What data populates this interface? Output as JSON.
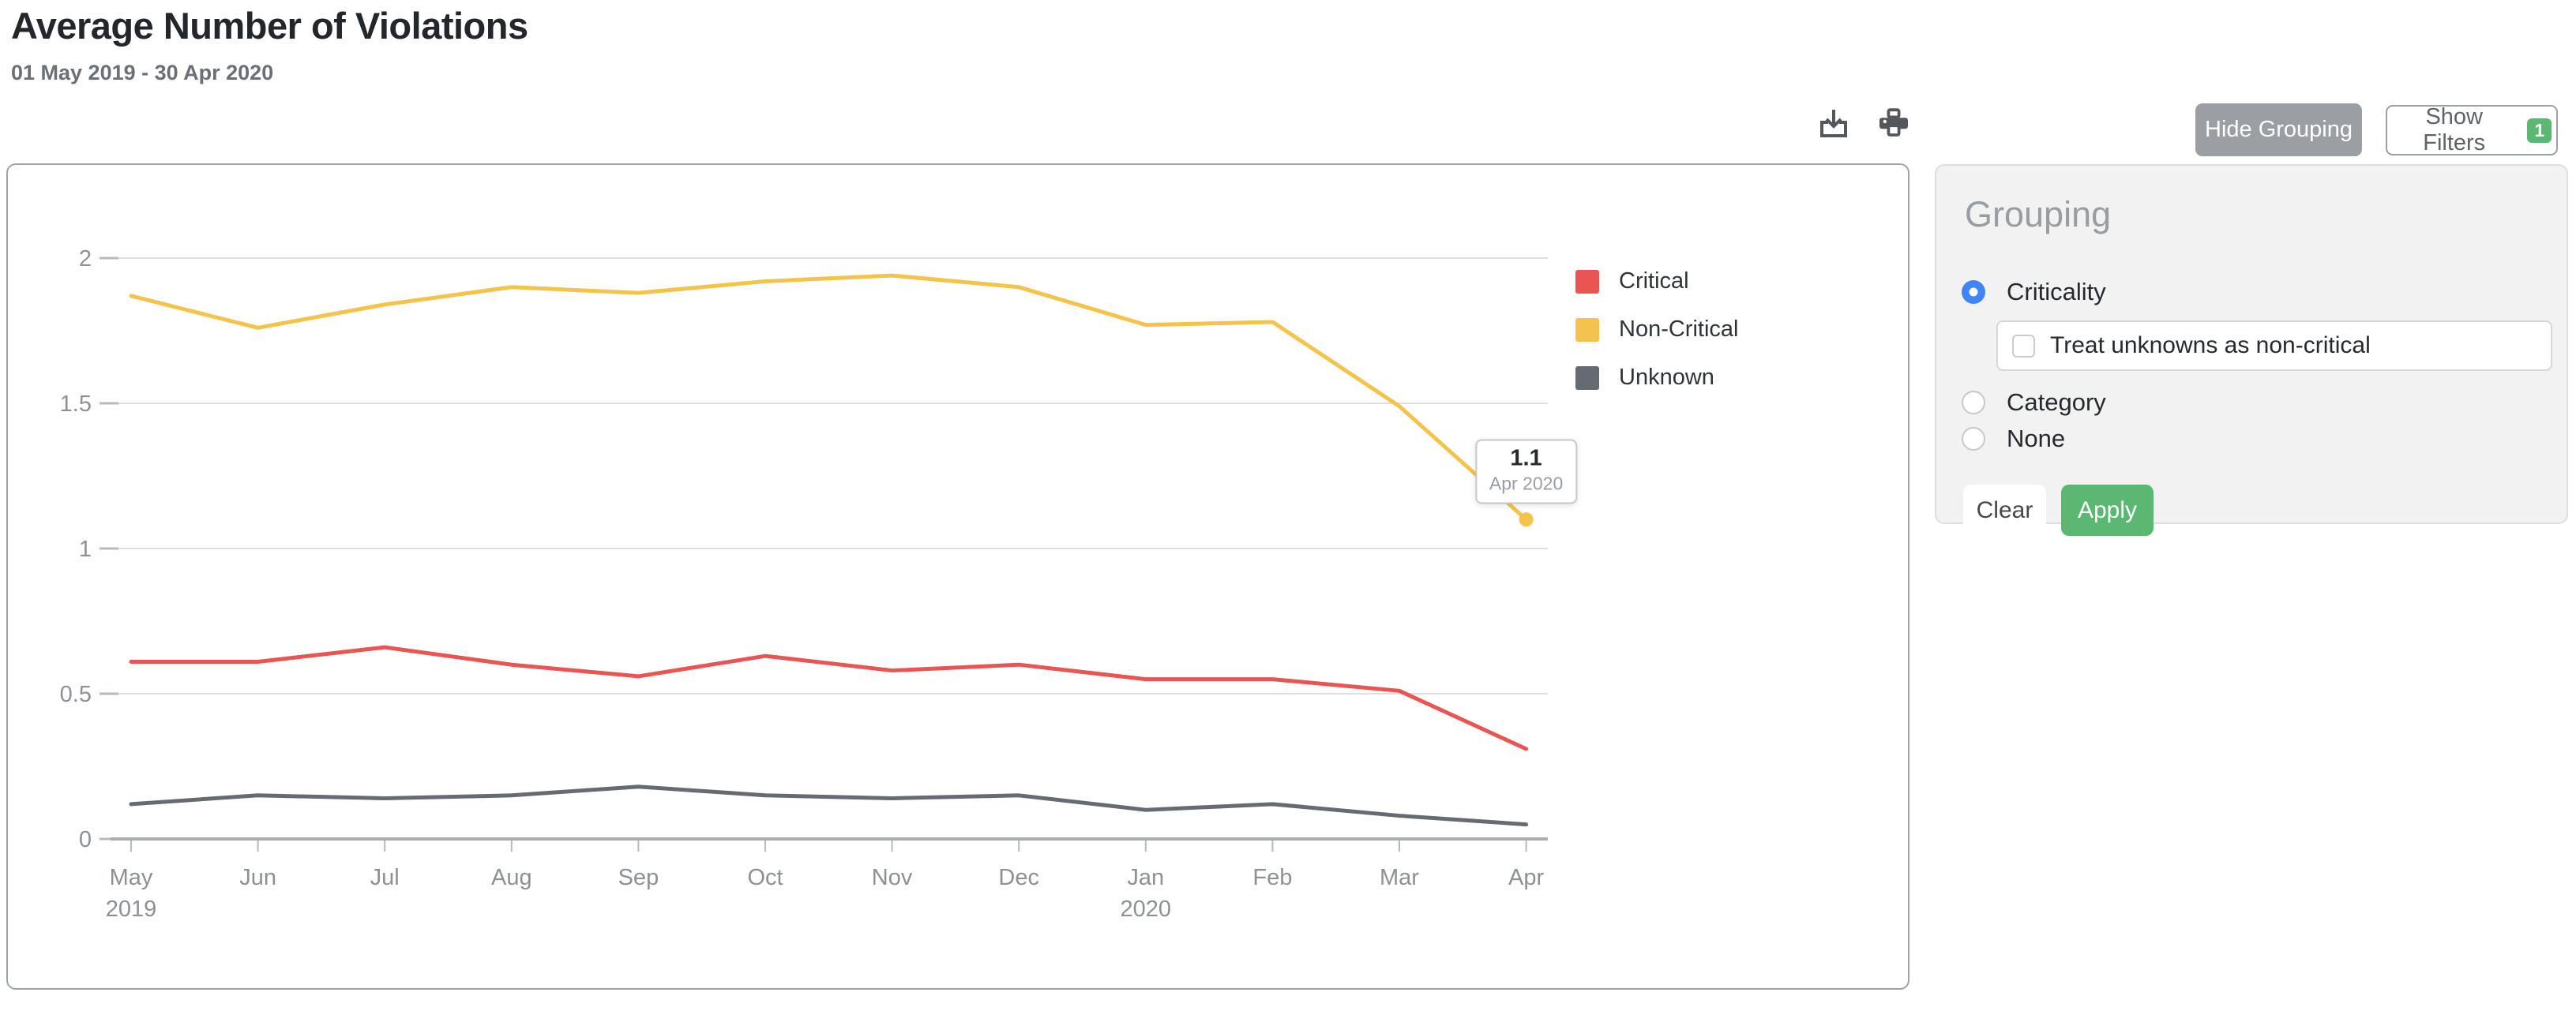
{
  "header": {
    "title": "Average Number of Violations",
    "date_range": "01 May 2019 - 30 Apr 2020"
  },
  "toolbar": {
    "download_icon": "download-icon",
    "print_icon": "print-icon",
    "hide_grouping_label": "Hide Grouping",
    "show_filters_label": "Show Filters",
    "filters_count": "1"
  },
  "grouping": {
    "title": "Grouping",
    "options": [
      {
        "label": "Criticality",
        "selected": true
      },
      {
        "label": "Category",
        "selected": false
      },
      {
        "label": "None",
        "selected": false
      }
    ],
    "treat_unknowns": {
      "label": "Treat unknowns as non-critical",
      "checked": false
    },
    "clear_label": "Clear",
    "apply_label": "Apply"
  },
  "chart_data": {
    "type": "line",
    "title": "Average Number of Violations",
    "subtitle": "01 May 2019 - 30 Apr 2020",
    "categories": [
      "May",
      "Jun",
      "Jul",
      "Aug",
      "Sep",
      "Oct",
      "Nov",
      "Dec",
      "Jan",
      "Feb",
      "Mar",
      "Apr"
    ],
    "year_labels": {
      "0": "2019",
      "8": "2020"
    },
    "yticks": [
      0,
      0.5,
      1,
      1.5,
      2
    ],
    "ylim": [
      0,
      2.15
    ],
    "grid": "horizontal",
    "legend_position": "right",
    "colors": {
      "accent_blue": "#4184f3",
      "accent_green": "#5bb873",
      "grid_line": "#dedfe0",
      "axis_line": "#a9adb1",
      "axis_text": "#8d9196"
    },
    "series": [
      {
        "name": "Critical",
        "color": "#E85552",
        "values": [
          0.61,
          0.61,
          0.66,
          0.6,
          0.56,
          0.63,
          0.58,
          0.6,
          0.55,
          0.55,
          0.51,
          0.31
        ]
      },
      {
        "name": "Non-Critical",
        "color": "#F3C34B",
        "values": [
          1.87,
          1.76,
          1.84,
          1.9,
          1.88,
          1.92,
          1.94,
          1.9,
          1.77,
          1.78,
          1.49,
          1.1
        ]
      },
      {
        "name": "Unknown",
        "color": "#666B71",
        "values": [
          0.12,
          0.15,
          0.14,
          0.15,
          0.18,
          0.15,
          0.14,
          0.15,
          0.1,
          0.12,
          0.08,
          0.05
        ]
      }
    ],
    "tooltip": {
      "value": "1.1",
      "label": "Apr 2020",
      "series_index": 1,
      "point_index": 11
    }
  }
}
